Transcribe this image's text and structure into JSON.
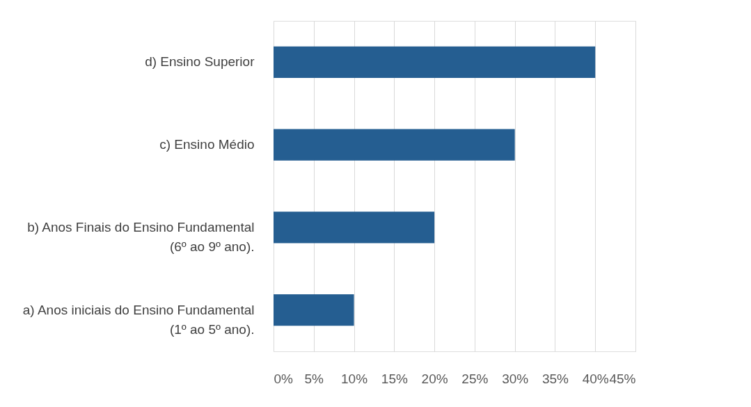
{
  "chart_data": {
    "type": "bar",
    "orientation": "horizontal",
    "categories": [
      "d)    Ensino Superior",
      "c)    Ensino Médio",
      "b)    Anos Finais do Ensino Fundamental\n(6º ao 9º ano).",
      "a)    Anos iniciais do Ensino Fundamental\n(1º ao 5º ano)."
    ],
    "values": [
      40,
      30,
      20,
      10
    ],
    "color": "#255e91",
    "xlim": [
      0,
      45
    ],
    "xticks": [
      {
        "value": 0,
        "label": "0%"
      },
      {
        "value": 5,
        "label": "5%"
      },
      {
        "value": 10,
        "label": "10%"
      },
      {
        "value": 15,
        "label": "15%"
      },
      {
        "value": 20,
        "label": "20%"
      },
      {
        "value": 25,
        "label": "25%"
      },
      {
        "value": 30,
        "label": "30%"
      },
      {
        "value": 35,
        "label": "35%"
      },
      {
        "value": 40,
        "label": "40%"
      },
      {
        "value": 45,
        "label": "45%"
      }
    ],
    "grid": "x"
  }
}
